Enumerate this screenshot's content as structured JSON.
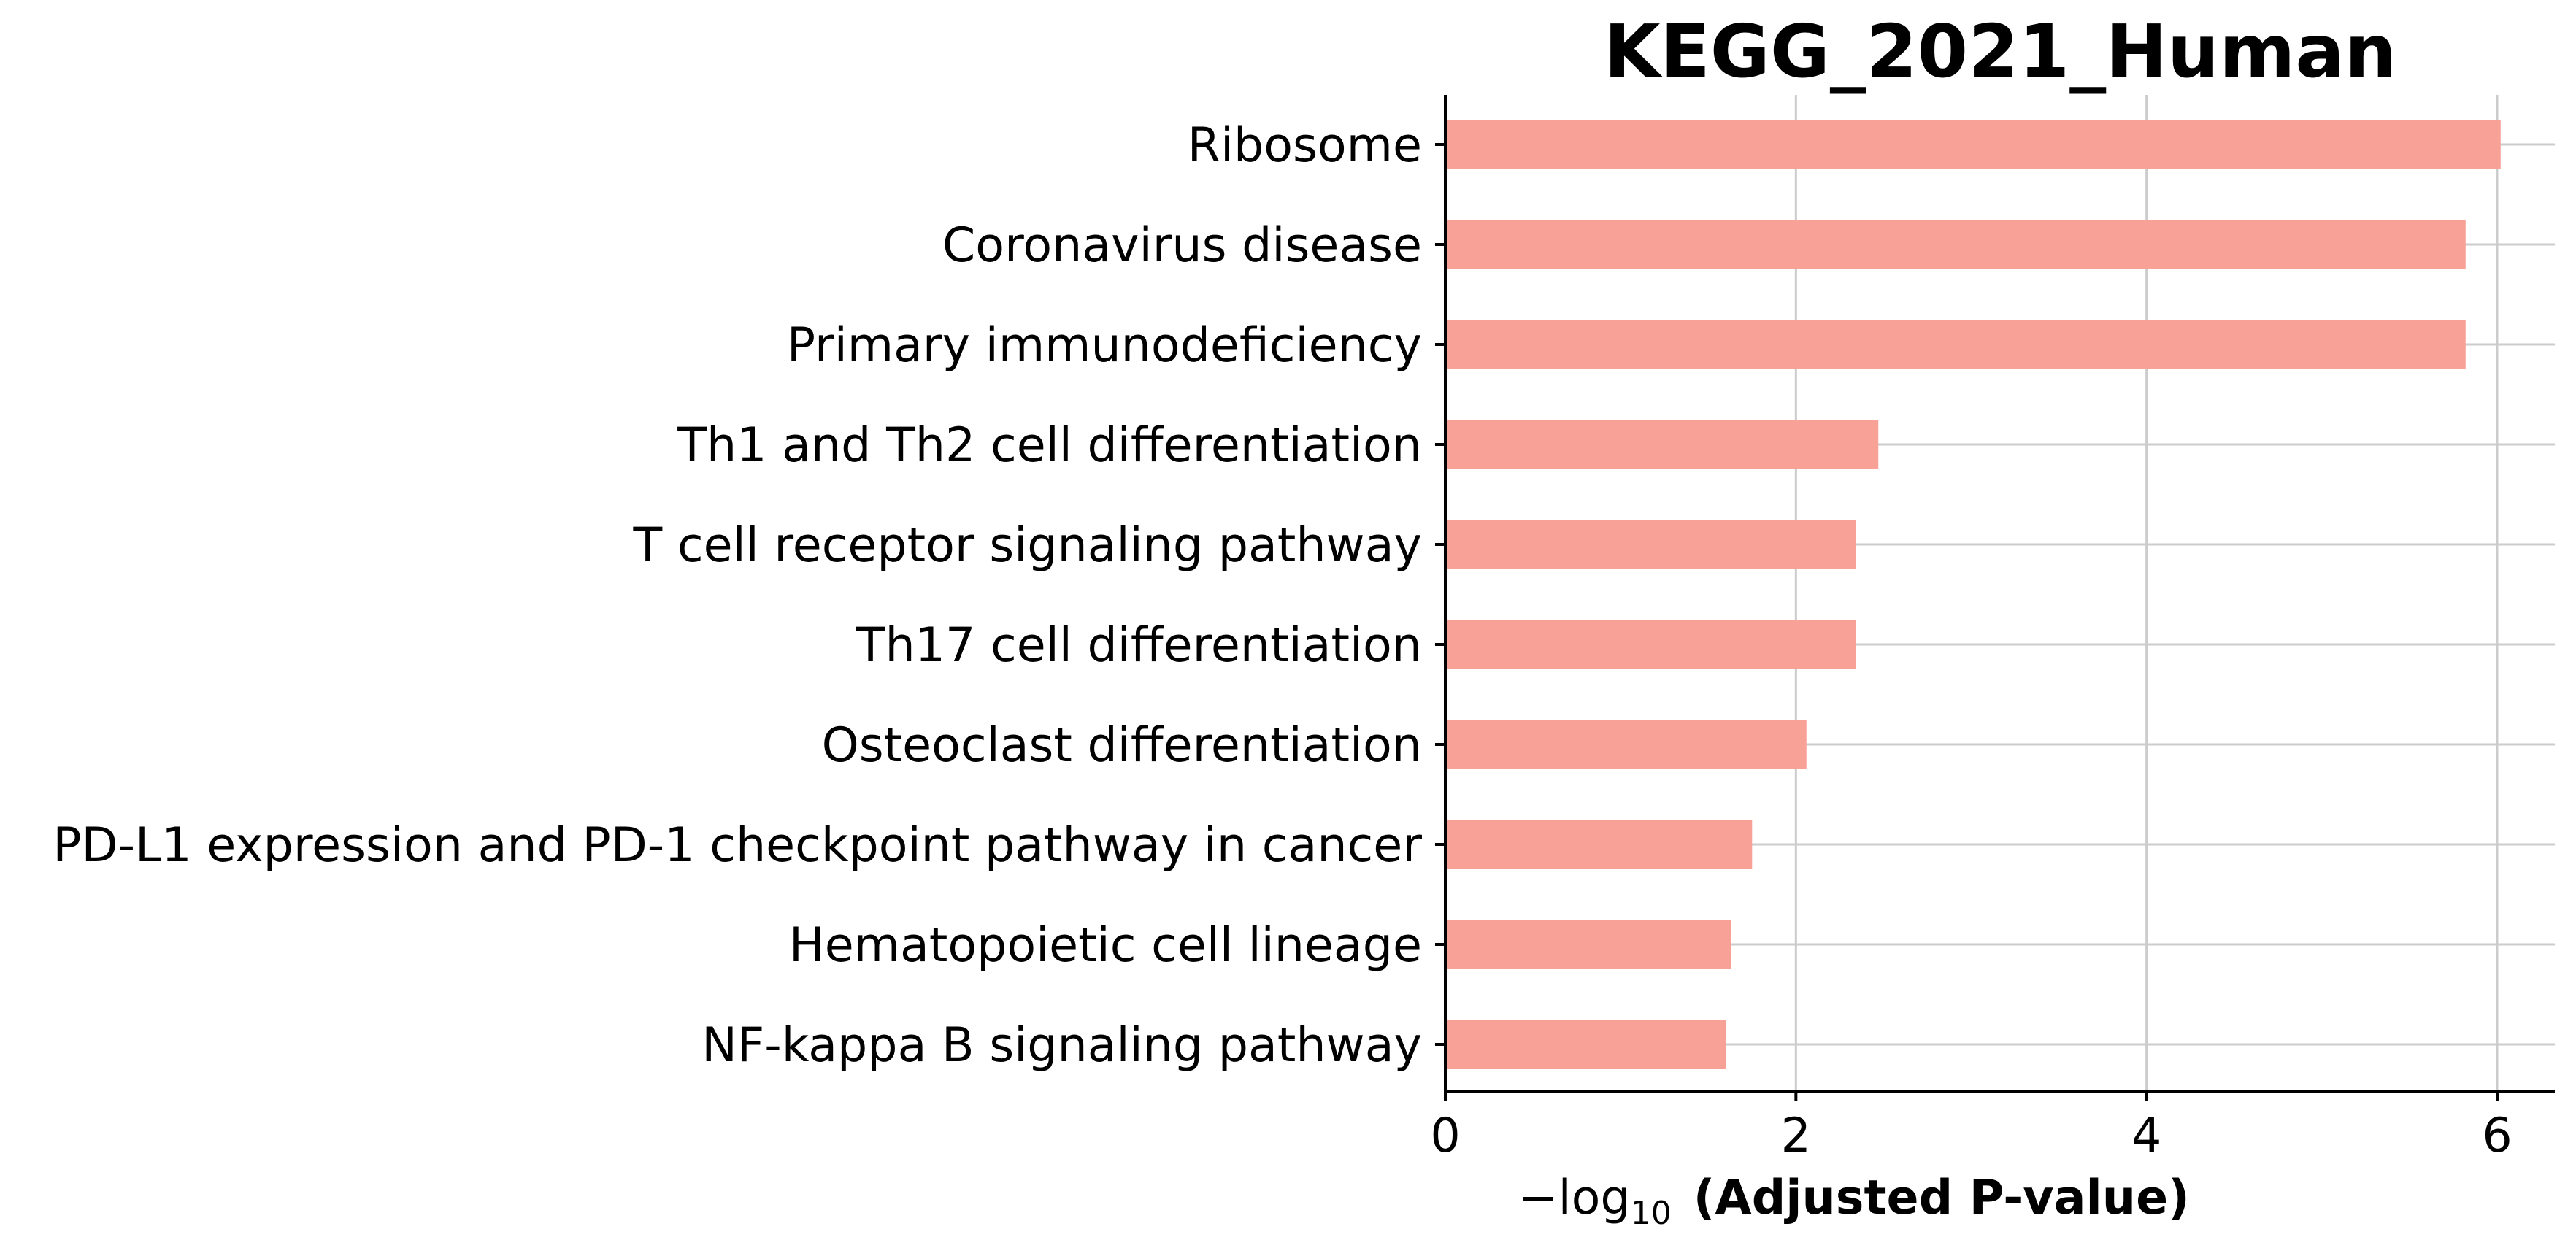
{
  "chart_data": {
    "type": "bar",
    "orientation": "horizontal",
    "title": "KEGG_2021_Human",
    "xlabel": {
      "prefix": "−log",
      "subscript": "10",
      "suffix": "(Adjusted P-value)"
    },
    "ylabel": "",
    "categories": [
      "Ribosome",
      "Coronavirus disease",
      "Primary immunodeficiency",
      "Th1 and Th2 cell differentiation",
      "T cell receptor signaling pathway",
      "Th17 cell differentiation",
      "Osteoclast differentiation",
      "PD-L1 expression and PD-1 checkpoint pathway in cancer",
      "Hematopoietic cell lineage",
      "NF-kappa B signaling pathway"
    ],
    "values": [
      6.02,
      5.82,
      5.82,
      2.47,
      2.34,
      2.34,
      2.06,
      1.75,
      1.63,
      1.6
    ],
    "xlim": [
      0,
      6.32
    ],
    "xticks": [
      0,
      2,
      4,
      6
    ],
    "xtick_labels": [
      "0",
      "2",
      "4",
      "6"
    ],
    "grid": true,
    "legend": "none",
    "colors": {
      "bar": "#f8a196",
      "grid": "#cccccc",
      "axis": "#000000"
    }
  }
}
